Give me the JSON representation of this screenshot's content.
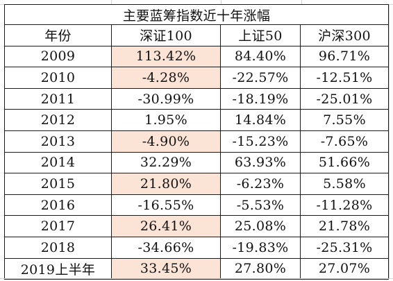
{
  "table": {
    "title": "主要蓝筹指数近十年涨幅",
    "headers": [
      "年份",
      "深证100",
      "上证50",
      "沪深300"
    ],
    "rows": [
      {
        "year": "2009",
        "szse100": "113.42%",
        "sse50": "84.40%",
        "csi300": "96.71%",
        "highlight": true
      },
      {
        "year": "2010",
        "szse100": "-4.28%",
        "sse50": "-22.57%",
        "csi300": "-12.51%",
        "highlight": true
      },
      {
        "year": "2011",
        "szse100": "-30.99%",
        "sse50": "-18.19%",
        "csi300": "-25.01%",
        "highlight": false
      },
      {
        "year": "2012",
        "szse100": "1.95%",
        "sse50": "14.84%",
        "csi300": "7.55%",
        "highlight": false
      },
      {
        "year": "2013",
        "szse100": "-4.90%",
        "sse50": "-15.23%",
        "csi300": "-7.65%",
        "highlight": true
      },
      {
        "year": "2014",
        "szse100": "32.29%",
        "sse50": "63.93%",
        "csi300": "51.66%",
        "highlight": false
      },
      {
        "year": "2015",
        "szse100": "21.80%",
        "sse50": "-6.23%",
        "csi300": "5.58%",
        "highlight": true
      },
      {
        "year": "2016",
        "szse100": "-16.55%",
        "sse50": "-5.53%",
        "csi300": "-11.28%",
        "highlight": false
      },
      {
        "year": "2017",
        "szse100": "26.41%",
        "sse50": "25.08%",
        "csi300": "21.78%",
        "highlight": true
      },
      {
        "year": "2018",
        "szse100": "-34.66%",
        "sse50": "-19.83%",
        "csi300": "-25.31%",
        "highlight": false
      },
      {
        "year": "2019上半年",
        "szse100": "33.45%",
        "sse50": "27.80%",
        "csi300": "27.07%",
        "highlight": true
      }
    ]
  },
  "colors": {
    "highlight_fill": "#fbe3d6",
    "border": "#1a1a1a",
    "text": "#111111"
  }
}
